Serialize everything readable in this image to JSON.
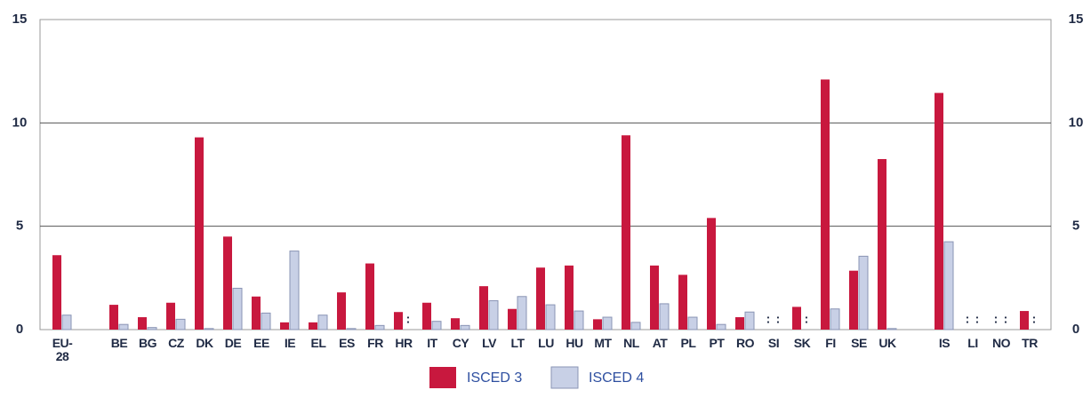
{
  "chart_data": {
    "type": "bar",
    "categories": [
      "EU-28",
      null,
      "BE",
      "BG",
      "CZ",
      "DK",
      "DE",
      "EE",
      "IE",
      "EL",
      "ES",
      "FR",
      "HR",
      "IT",
      "CY",
      "LV",
      "LT",
      "LU",
      "HU",
      "MT",
      "NL",
      "AT",
      "PL",
      "PT",
      "RO",
      "SI",
      "SK",
      "FI",
      "SE",
      "UK",
      null,
      "IS",
      "LI",
      "NO",
      "TR"
    ],
    "series": [
      {
        "name": "ISCED 3",
        "color": "#c8183e",
        "values": [
          3.6,
          null,
          1.2,
          0.6,
          1.3,
          9.3,
          4.5,
          1.6,
          0.35,
          0.35,
          1.8,
          3.2,
          0.85,
          1.3,
          0.55,
          2.1,
          1.0,
          3.0,
          3.1,
          0.5,
          9.4,
          3.1,
          2.65,
          5.4,
          0.6,
          null,
          1.1,
          12.1,
          2.85,
          8.25,
          null,
          11.45,
          null,
          null,
          0.9
        ],
        "value_labels": [
          null,
          null,
          null,
          null,
          null,
          null,
          null,
          null,
          null,
          null,
          null,
          null,
          null,
          null,
          null,
          null,
          null,
          null,
          null,
          null,
          null,
          null,
          null,
          null,
          null,
          ":",
          null,
          null,
          null,
          null,
          null,
          null,
          ":",
          ":",
          null
        ]
      },
      {
        "name": "ISCED 4",
        "color": "#c8d0e6",
        "values": [
          0.7,
          null,
          0.25,
          0.1,
          0.5,
          0.05,
          2.0,
          0.8,
          3.8,
          0.7,
          0.05,
          0.2,
          null,
          0.4,
          0.2,
          1.4,
          1.6,
          1.2,
          0.9,
          0.6,
          0.35,
          1.25,
          0.6,
          0.25,
          0.85,
          null,
          null,
          1.0,
          3.55,
          0.05,
          null,
          4.25,
          null,
          null,
          null
        ],
        "value_labels": [
          null,
          null,
          null,
          null,
          null,
          null,
          null,
          null,
          null,
          null,
          null,
          null,
          ":",
          null,
          null,
          null,
          null,
          null,
          null,
          null,
          null,
          null,
          null,
          null,
          null,
          ":",
          ":",
          null,
          null,
          null,
          null,
          null,
          ":",
          ":",
          ":"
        ]
      }
    ],
    "ylim": [
      0,
      15
    ],
    "yticks": [
      0,
      5,
      10,
      15
    ],
    "grid": true,
    "legend": "bottom"
  }
}
